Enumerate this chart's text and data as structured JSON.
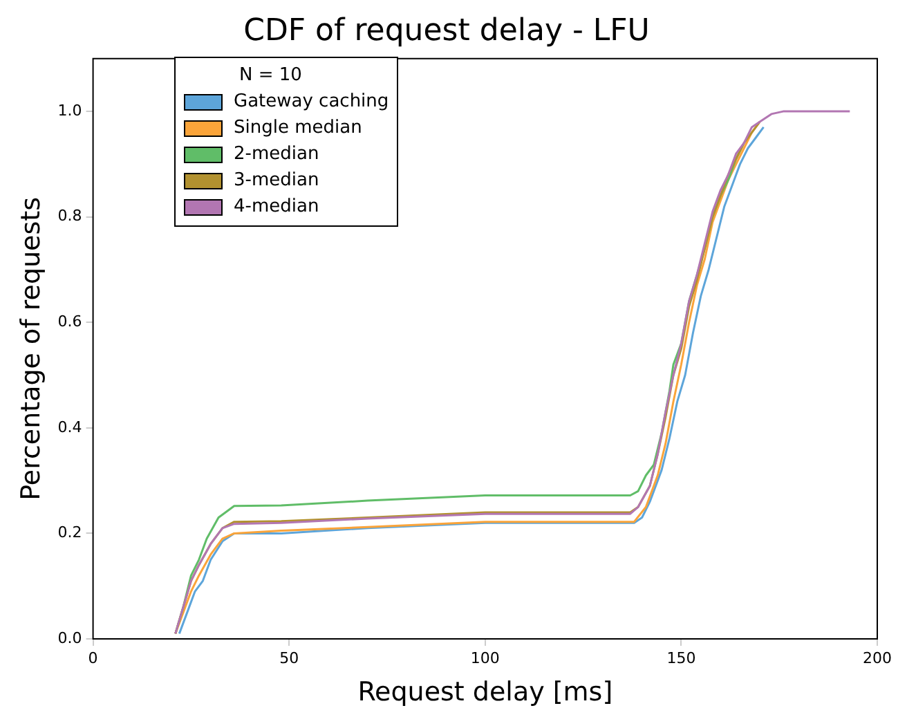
{
  "chart_data": {
    "type": "line",
    "title": "CDF of request delay - LFU",
    "xlabel": "Request delay [ms]",
    "ylabel": "Percentage of requests",
    "legend_title": "N = 10",
    "legend": "top left",
    "grid": false,
    "marker": "none",
    "line_style": "solid",
    "xlim": [
      0,
      200
    ],
    "xticks": [
      0,
      50,
      100,
      150,
      200
    ],
    "ylim": [
      0,
      1.1
    ],
    "yticks": [
      {
        "value": 0,
        "label": "0.0"
      },
      {
        "value": 0.2,
        "label": "0.2"
      },
      {
        "value": 0.4,
        "label": "0.4"
      },
      {
        "value": 0.6,
        "label": "0.6"
      },
      {
        "value": 0.8,
        "label": "0.8"
      },
      {
        "value": 1,
        "label": "1.0"
      }
    ],
    "series": [
      {
        "name": "Gateway caching",
        "color": "#5da5da",
        "x": [
          22,
          24,
          26,
          28,
          30,
          33,
          36,
          48,
          70,
          100,
          138,
          140,
          142,
          145,
          147,
          149,
          151,
          153,
          155,
          157,
          159,
          161,
          163,
          165,
          167,
          169,
          171
        ],
        "values": [
          0.01,
          0.05,
          0.09,
          0.11,
          0.15,
          0.185,
          0.2,
          0.2,
          0.21,
          0.22,
          0.22,
          0.23,
          0.26,
          0.32,
          0.38,
          0.45,
          0.5,
          0.58,
          0.65,
          0.7,
          0.76,
          0.82,
          0.86,
          0.9,
          0.93,
          0.95,
          0.97
        ]
      },
      {
        "name": "Single median",
        "color": "#faa43a",
        "x": [
          21,
          23,
          25,
          27,
          30,
          33,
          36,
          48,
          70,
          100,
          138,
          141,
          144,
          146,
          148,
          150,
          152,
          154,
          156,
          158,
          160,
          162,
          164,
          166,
          168,
          170
        ],
        "values": [
          0.01,
          0.05,
          0.09,
          0.12,
          0.16,
          0.19,
          0.2,
          0.205,
          0.212,
          0.222,
          0.222,
          0.25,
          0.31,
          0.37,
          0.45,
          0.52,
          0.6,
          0.67,
          0.72,
          0.79,
          0.83,
          0.87,
          0.9,
          0.93,
          0.96,
          0.98
        ]
      },
      {
        "name": "2-median",
        "color": "#60bd68",
        "x": [
          21,
          23,
          25,
          27,
          29,
          32,
          36,
          48,
          70,
          100,
          137,
          139,
          141,
          143,
          145,
          147,
          148,
          150,
          152,
          154,
          156,
          158,
          160,
          162,
          164,
          166
        ],
        "values": [
          0.01,
          0.06,
          0.12,
          0.15,
          0.19,
          0.23,
          0.252,
          0.253,
          0.262,
          0.272,
          0.272,
          0.28,
          0.31,
          0.33,
          0.39,
          0.47,
          0.52,
          0.56,
          0.64,
          0.69,
          0.74,
          0.8,
          0.84,
          0.87,
          0.91,
          0.94
        ]
      },
      {
        "name": "3-median",
        "color": "#b2912f",
        "x": [
          21,
          23,
          25,
          27,
          30,
          33,
          36,
          48,
          70,
          100,
          137,
          139,
          142,
          144,
          146,
          148,
          150,
          152,
          154,
          156,
          158,
          160,
          162,
          164,
          166,
          168,
          170
        ],
        "values": [
          0.01,
          0.06,
          0.11,
          0.14,
          0.18,
          0.21,
          0.222,
          0.223,
          0.23,
          0.24,
          0.24,
          0.25,
          0.29,
          0.35,
          0.42,
          0.5,
          0.55,
          0.63,
          0.68,
          0.74,
          0.8,
          0.84,
          0.88,
          0.91,
          0.94,
          0.96,
          0.98
        ]
      },
      {
        "name": "4-median",
        "color": "#b276b2",
        "x": [
          21,
          23,
          25,
          27,
          30,
          33,
          36,
          48,
          70,
          100,
          137,
          139,
          142,
          144,
          146,
          148,
          150,
          152,
          154,
          156,
          158,
          160,
          162,
          164,
          166,
          168,
          170,
          173,
          176,
          193
        ],
        "values": [
          0.01,
          0.06,
          0.11,
          0.14,
          0.18,
          0.21,
          0.218,
          0.22,
          0.228,
          0.237,
          0.237,
          0.25,
          0.29,
          0.35,
          0.43,
          0.5,
          0.56,
          0.64,
          0.69,
          0.75,
          0.81,
          0.85,
          0.88,
          0.92,
          0.94,
          0.97,
          0.98,
          0.995,
          1,
          1
        ]
      }
    ]
  }
}
